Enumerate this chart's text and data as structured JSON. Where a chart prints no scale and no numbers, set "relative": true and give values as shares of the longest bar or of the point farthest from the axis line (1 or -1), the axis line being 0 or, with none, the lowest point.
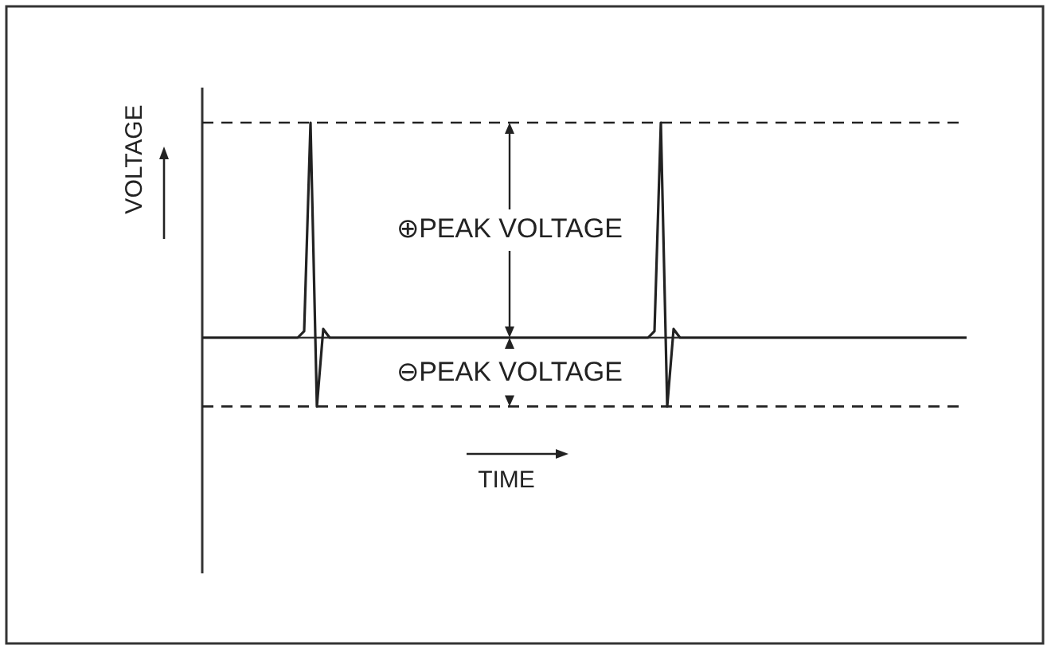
{
  "chart_data": {
    "type": "line",
    "relative": true,
    "xlabel": "TIME",
    "ylabel": "VOLTAGE",
    "categories": [
      null,
      null,
      null,
      null,
      null,
      null,
      null,
      null,
      null,
      null,
      null,
      null,
      null,
      null,
      null,
      null,
      null,
      null,
      null,
      null,
      null,
      null,
      null,
      null,
      null,
      null,
      null,
      null,
      null,
      null,
      null,
      null,
      null,
      null,
      null,
      null,
      null,
      null,
      null,
      null,
      null,
      null,
      null,
      null,
      null,
      null,
      null,
      null,
      null,
      null,
      null,
      null,
      null,
      null,
      null,
      null,
      null,
      null,
      null,
      null,
      null,
      null,
      null,
      null,
      null,
      null,
      null,
      null,
      null,
      null,
      null,
      null,
      null,
      null,
      null,
      null,
      null,
      null,
      null,
      null,
      null,
      null,
      null,
      null,
      null,
      null,
      null,
      null,
      null,
      null,
      null,
      null,
      null,
      null,
      null,
      null,
      null,
      null,
      null,
      null,
      null,
      null,
      null,
      null,
      null,
      null,
      null,
      null,
      null,
      null,
      null,
      null,
      null,
      null,
      null,
      null,
      null,
      null,
      null,
      null,
      null
    ],
    "series": [
      {
        "color": "#222222",
        "values": [
          0,
          0,
          0,
          0,
          0,
          0,
          0,
          0,
          0,
          0,
          0,
          0,
          0,
          0,
          0,
          0,
          0.03,
          1,
          -0.32,
          0.04,
          0,
          0,
          0,
          0,
          0,
          0,
          0,
          0,
          0,
          0,
          0,
          0,
          0,
          0,
          0,
          0,
          0,
          0,
          0,
          0,
          0,
          0,
          0,
          0,
          0,
          0,
          0,
          0,
          0,
          0,
          0,
          0,
          0,
          0,
          0,
          0,
          0,
          0,
          0,
          0,
          0,
          0,
          0,
          0,
          0,
          0,
          0,
          0,
          0,
          0,
          0,
          0.03,
          1,
          -0.32,
          0.04,
          0,
          0,
          0,
          0,
          0,
          0,
          0,
          0,
          0,
          0,
          0,
          0,
          0,
          0,
          0,
          0,
          0,
          0,
          0,
          0,
          0,
          0,
          0,
          0,
          0,
          0,
          0,
          0,
          0,
          0,
          0,
          0,
          0,
          0,
          0,
          0,
          0,
          0,
          0,
          0,
          0,
          0,
          0,
          0,
          0,
          0
        ]
      }
    ],
    "ref_lines": [
      {
        "axis": "y",
        "value": 1,
        "line_style": "dashed",
        "color": "#222222"
      },
      {
        "axis": "y",
        "value": -0.32,
        "line_style": "dashed",
        "color": "#222222"
      }
    ],
    "annotations": [
      "⊕PEAK VOLTAGE",
      "⊖PEAK VOLTAGE"
    ],
    "line_style": "solid"
  }
}
